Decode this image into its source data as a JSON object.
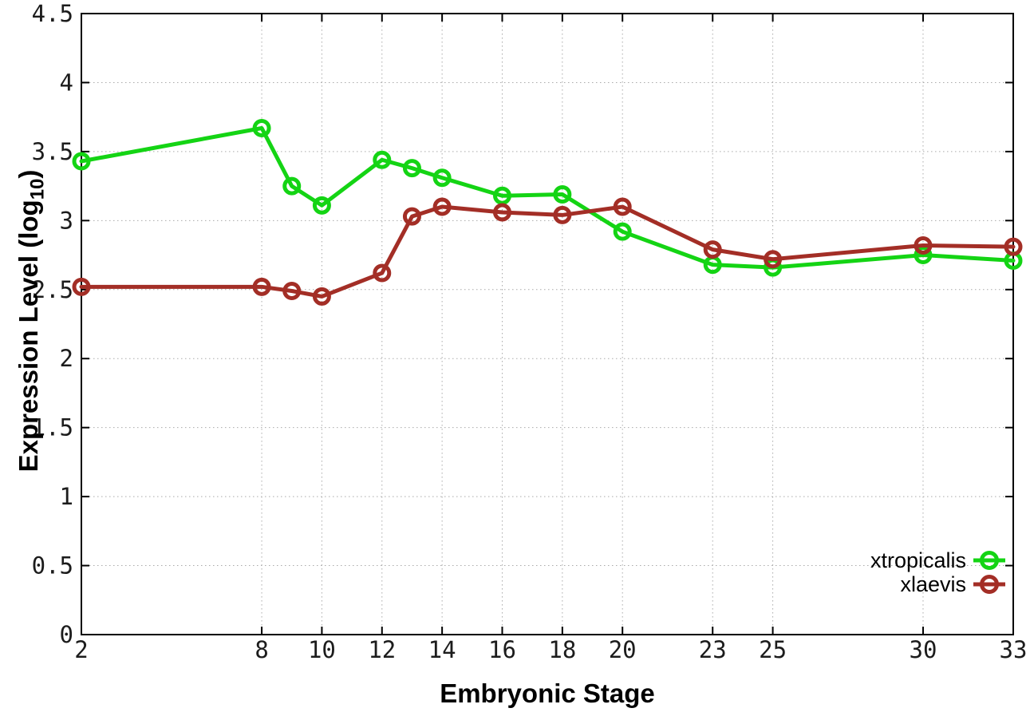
{
  "chart_data": {
    "type": "line",
    "xlabel": "Embryonic Stage",
    "ylabel_main": "Expression Level (log",
    "ylabel_sub": "10",
    "ylabel_close": ")",
    "xlim": [
      2,
      33
    ],
    "ylim": [
      0,
      4.5
    ],
    "x_ticks": [
      2,
      8,
      10,
      12,
      14,
      16,
      18,
      20,
      23,
      25,
      30,
      33
    ],
    "x_tick_labels": [
      "2",
      "8",
      "10",
      "12",
      "14",
      "16",
      "18",
      "20",
      "23",
      "25",
      "30",
      "33"
    ],
    "y_ticks": [
      0,
      0.5,
      1,
      1.5,
      2,
      2.5,
      3,
      3.5,
      4,
      4.5
    ],
    "y_tick_labels": [
      "0",
      "0.5",
      "1",
      "1.5",
      "2",
      "2.5",
      "3",
      "3.5",
      "4",
      "4.5"
    ],
    "grid": true,
    "grid_color": "#aaaaaa",
    "border_color": "#000000",
    "background": "#ffffff",
    "marker": "open-circle",
    "legend_position": "bottom-right",
    "x": [
      2,
      8,
      9,
      10,
      12,
      13,
      14,
      16,
      18,
      20,
      23,
      25,
      30,
      33
    ],
    "series": [
      {
        "name": "xtropicalis",
        "color": "#14d414",
        "values": [
          3.43,
          3.67,
          3.25,
          3.11,
          3.44,
          3.38,
          3.31,
          3.18,
          3.19,
          2.92,
          2.68,
          2.66,
          2.75,
          2.71
        ]
      },
      {
        "name": "xlaevis",
        "color": "#a32e26",
        "values": [
          2.52,
          2.52,
          2.49,
          2.45,
          2.62,
          3.03,
          3.1,
          3.06,
          3.04,
          3.1,
          2.79,
          2.72,
          2.82,
          2.81
        ]
      }
    ]
  }
}
